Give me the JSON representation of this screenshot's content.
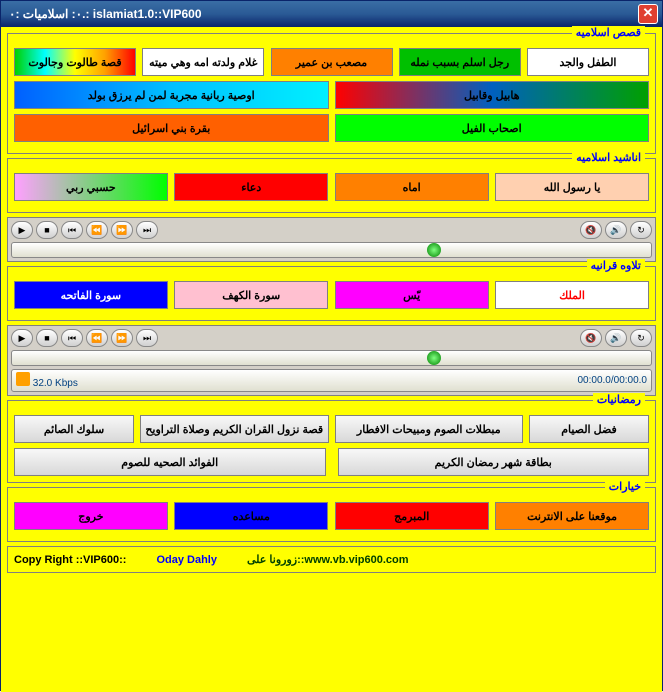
{
  "window": {
    "title": "٠: اسلاميات :٠.: islamiat1.0::VIP600"
  },
  "groups": {
    "stories": {
      "title": "قصص اسلاميه",
      "row1": [
        "الطفل والجد",
        "رجل اسلم بسبب نمله",
        "مصعب بن عمير",
        "غلام ولدته امه وهي ميته",
        "قصة طالوت وجالوت"
      ],
      "row2": [
        "هابيل وقابيل",
        "اوصية ربانية مجربة لمن لم يرزق بولد"
      ],
      "row3": [
        "اصحاب الفيل",
        "بقرة بني اسرائيل"
      ]
    },
    "nasheed": {
      "title": "اناشيد اسلاميه",
      "items": [
        "يا رسول الله",
        "اماه",
        "دعاء",
        "حسبي ربي"
      ]
    },
    "quran": {
      "title": "تلاوه قرانيه",
      "items": [
        "الملك",
        "يّس",
        "سورة الكهف",
        "سورة الفاتحه"
      ]
    },
    "ramadan": {
      "title": "رمضانيات",
      "row1": [
        "فضل الصيام",
        "مبطلات الصوم ومبيحات الافطار",
        "قصة نزول القران الكريم وصلاة التراويح",
        "سلوك الصائم"
      ],
      "row2": [
        "بطاقة شهر رمضان الكريم",
        "الفوائد الصحيه للصوم"
      ]
    },
    "options": {
      "title": "خيارات",
      "items": [
        "موقعنا على الانترنت",
        "المبرمج",
        "مساعده",
        "خروج"
      ]
    }
  },
  "player": {
    "kbps": "32.0 Kbps",
    "time": "00:00.0/00:00.0"
  },
  "footer": {
    "copy": "Copy Right ::VIP600::",
    "author": "Oday Dahly",
    "visit": "زورونا على",
    "url": "::www.vb.vip600.com"
  }
}
